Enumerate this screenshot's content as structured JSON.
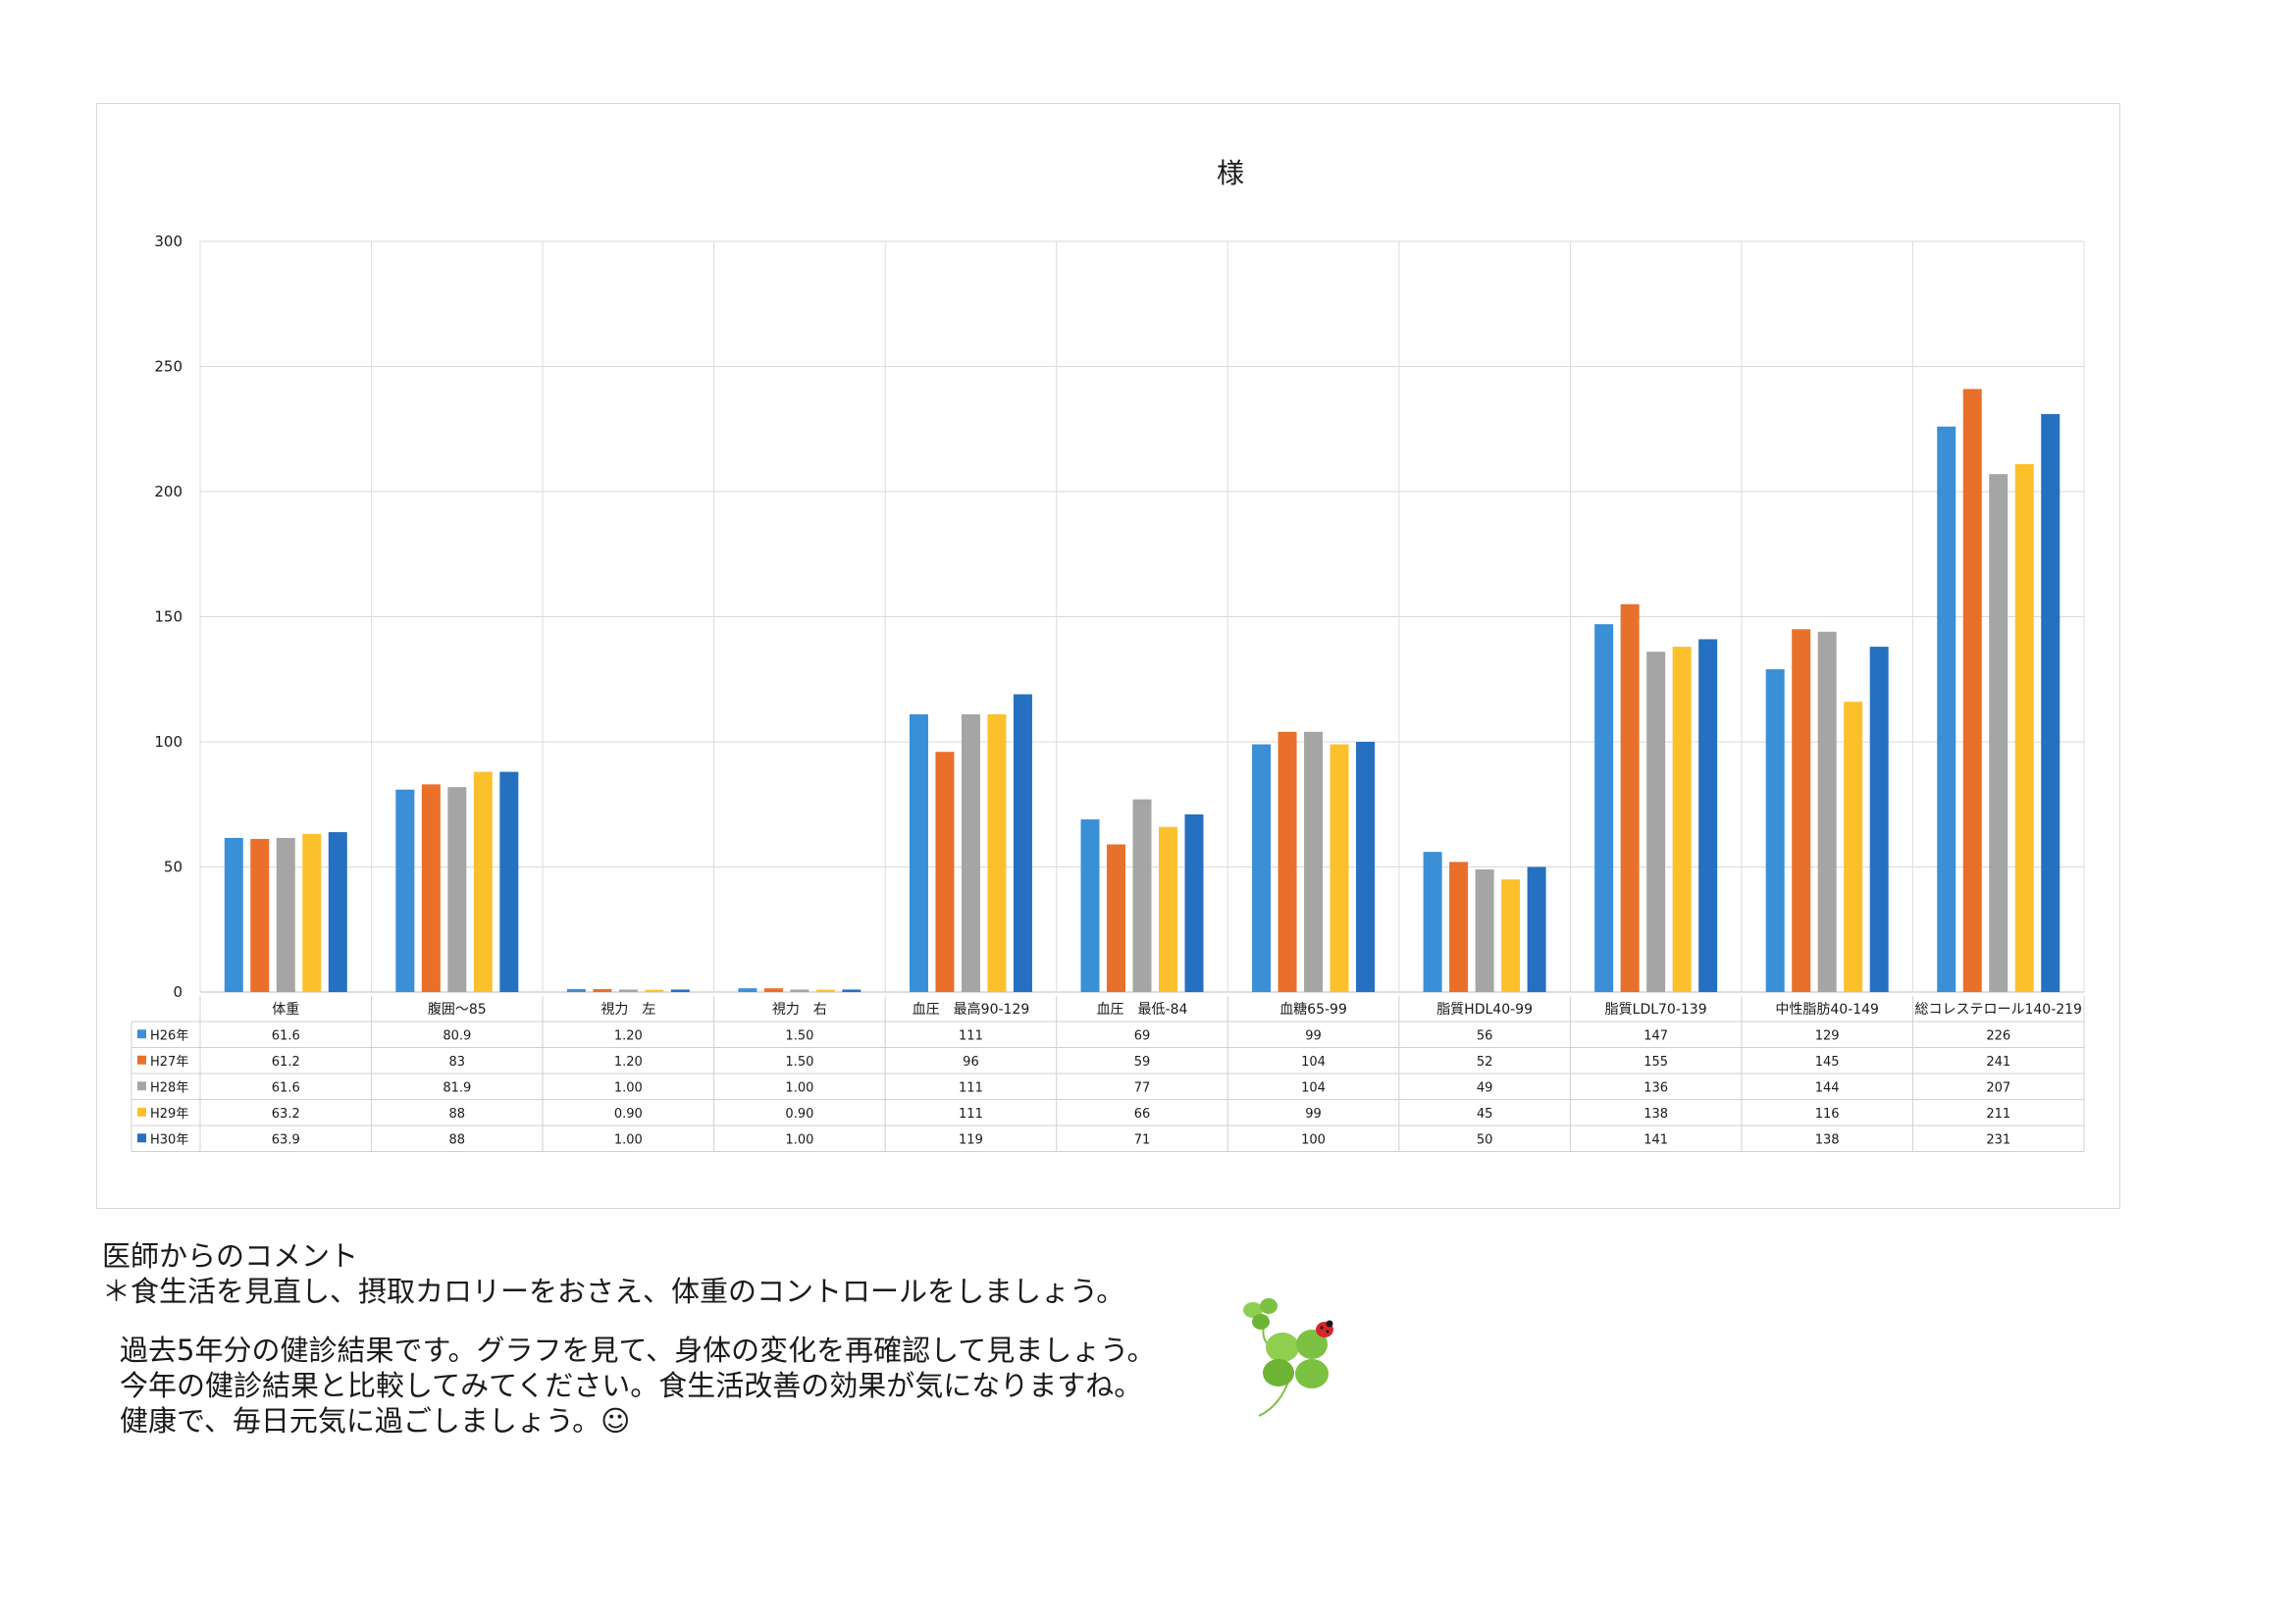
{
  "chart_data": {
    "type": "bar",
    "title": "様",
    "ylim": [
      0,
      300
    ],
    "yticks": [
      0,
      50,
      100,
      150,
      200,
      250,
      300
    ],
    "grid": true,
    "categories": [
      "体重",
      "腹囲～85",
      "視力　左",
      "視力　右",
      "血圧　最高90-129",
      "血圧　最低-84",
      "血糖65-99",
      "脂質HDL40-99",
      "脂質LDL70-139",
      "中性脂肪40-149",
      "総コレステロール140-219"
    ],
    "series": [
      {
        "name": "H26年",
        "color": "#3a8fd6",
        "values": [
          61.6,
          80.9,
          1.2,
          1.5,
          111,
          69,
          99,
          56,
          147,
          129,
          226
        ],
        "labels": [
          "61.6",
          "80.9",
          "1.20",
          "1.50",
          "111",
          "69",
          "99",
          "56",
          "147",
          "129",
          "226"
        ]
      },
      {
        "name": "H27年",
        "color": "#e8702a",
        "values": [
          61.2,
          83,
          1.2,
          1.5,
          96,
          59,
          104,
          52,
          155,
          145,
          241
        ],
        "labels": [
          "61.2",
          "83",
          "1.20",
          "1.50",
          "96",
          "59",
          "104",
          "52",
          "155",
          "145",
          "241"
        ]
      },
      {
        "name": "H28年",
        "color": "#a5a5a5",
        "values": [
          61.6,
          81.9,
          1.0,
          1.0,
          111,
          77,
          104,
          49,
          136,
          144,
          207
        ],
        "labels": [
          "61.6",
          "81.9",
          "1.00",
          "1.00",
          "111",
          "77",
          "104",
          "49",
          "136",
          "144",
          "207"
        ]
      },
      {
        "name": "H29年",
        "color": "#fcc02d",
        "values": [
          63.2,
          88,
          0.9,
          0.9,
          111,
          66,
          99,
          45,
          138,
          116,
          211
        ],
        "labels": [
          "63.2",
          "88",
          "0.90",
          "0.90",
          "111",
          "66",
          "99",
          "45",
          "138",
          "116",
          "211"
        ]
      },
      {
        "name": "H30年",
        "color": "#2570c0",
        "values": [
          63.9,
          88,
          1.0,
          1.0,
          119,
          71,
          100,
          50,
          141,
          138,
          231
        ],
        "labels": [
          "63.9",
          "88",
          "1.00",
          "1.00",
          "119",
          "71",
          "100",
          "50",
          "141",
          "138",
          "231"
        ]
      }
    ]
  },
  "comments": {
    "heading": "医師からのコメント",
    "advice": "＊食生活を見直し、摂取カロリーをおさえ、体重のコントロールをしましょう。",
    "message_lines": [
      "過去5年分の健診結果です。グラフを見て、身体の変化を再確認して見ましょう。",
      "今年の健診結果と比較してみてください。食生活改善の効果が気になりますね。",
      "健康で、毎日元気に過ごしましょう。☺"
    ]
  },
  "decoration": {
    "icon": "clover-ladybug-icon",
    "leaf_color": "#7cc242",
    "ladybug_color": "#d9262b"
  }
}
